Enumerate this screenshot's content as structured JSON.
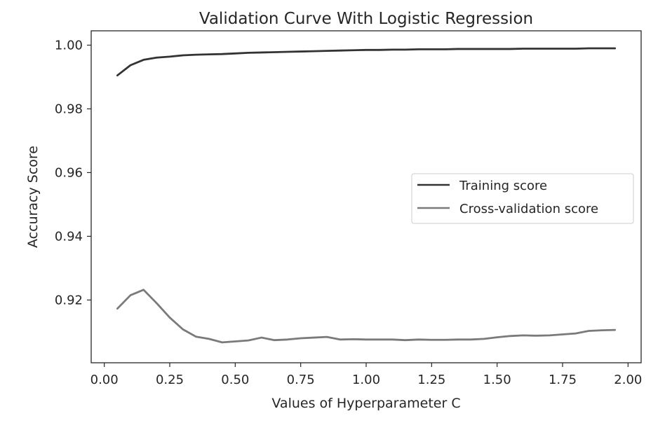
{
  "chart_data": {
    "type": "line",
    "title": "Validation Curve With Logistic Regression",
    "xlabel": "Values of Hyperparameter C",
    "ylabel": "Accuracy Score",
    "xlim": [
      -0.05,
      2.05
    ],
    "ylim": [
      0.9003,
      1.0045
    ],
    "xticks": [
      0.0,
      0.25,
      0.5,
      0.75,
      1.0,
      1.25,
      1.5,
      1.75,
      2.0
    ],
    "xtick_labels": [
      "0.00",
      "0.25",
      "0.50",
      "0.75",
      "1.00",
      "1.25",
      "1.50",
      "1.75",
      "2.00"
    ],
    "yticks": [
      0.92,
      0.94,
      0.96,
      0.98,
      1.0
    ],
    "ytick_labels": [
      "0.92",
      "0.94",
      "0.96",
      "0.98",
      "1.00"
    ],
    "grid": false,
    "legend_position": "center-right",
    "x": [
      0.05,
      0.1,
      0.15,
      0.2,
      0.25,
      0.3,
      0.35,
      0.4,
      0.45,
      0.5,
      0.55,
      0.6,
      0.65,
      0.7,
      0.75,
      0.8,
      0.85,
      0.9,
      0.95,
      1.0,
      1.05,
      1.1,
      1.15,
      1.2,
      1.25,
      1.3,
      1.35,
      1.4,
      1.45,
      1.5,
      1.55,
      1.6,
      1.65,
      1.7,
      1.75,
      1.8,
      1.85,
      1.9,
      1.95
    ],
    "series": [
      {
        "name": "Training score",
        "color": "#333333",
        "values": [
          0.9905,
          0.9937,
          0.9954,
          0.9961,
          0.9964,
          0.9968,
          0.997,
          0.9971,
          0.9972,
          0.9974,
          0.9976,
          0.9977,
          0.9978,
          0.9979,
          0.998,
          0.9981,
          0.9982,
          0.9983,
          0.9984,
          0.9985,
          0.9985,
          0.9986,
          0.9986,
          0.9987,
          0.9987,
          0.9987,
          0.9988,
          0.9988,
          0.9988,
          0.9988,
          0.9988,
          0.9989,
          0.9989,
          0.9989,
          0.9989,
          0.9989,
          0.999,
          0.999,
          0.999
        ]
      },
      {
        "name": "Cross-validation score",
        "color": "#7a7a7a",
        "values": [
          0.9173,
          0.9215,
          0.9232,
          0.919,
          0.9145,
          0.9108,
          0.9085,
          0.9078,
          0.9067,
          0.907,
          0.9073,
          0.9082,
          0.9074,
          0.9076,
          0.908,
          0.9082,
          0.9084,
          0.9076,
          0.9077,
          0.9076,
          0.9076,
          0.9076,
          0.9074,
          0.9076,
          0.9075,
          0.9075,
          0.9076,
          0.9076,
          0.9078,
          0.9083,
          0.9087,
          0.9089,
          0.9088,
          0.9089,
          0.9092,
          0.9095,
          0.9103,
          0.9105,
          0.9106
        ]
      }
    ]
  }
}
